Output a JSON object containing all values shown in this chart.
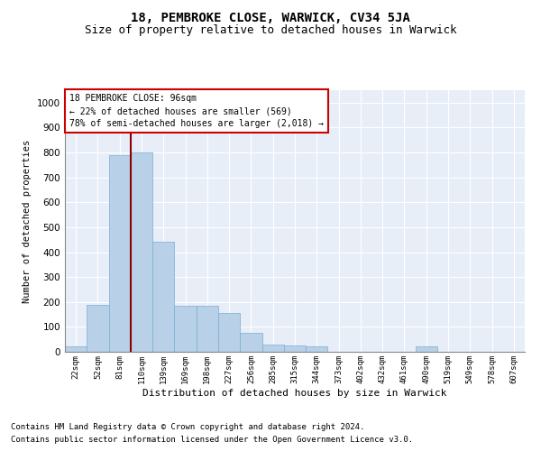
{
  "title1": "18, PEMBROKE CLOSE, WARWICK, CV34 5JA",
  "title2": "Size of property relative to detached houses in Warwick",
  "xlabel": "Distribution of detached houses by size in Warwick",
  "ylabel": "Number of detached properties",
  "categories": [
    "22sqm",
    "52sqm",
    "81sqm",
    "110sqm",
    "139sqm",
    "169sqm",
    "198sqm",
    "227sqm",
    "256sqm",
    "285sqm",
    "315sqm",
    "344sqm",
    "373sqm",
    "402sqm",
    "432sqm",
    "461sqm",
    "490sqm",
    "519sqm",
    "549sqm",
    "578sqm",
    "607sqm"
  ],
  "values": [
    20,
    190,
    790,
    800,
    440,
    185,
    185,
    155,
    75,
    30,
    25,
    20,
    0,
    0,
    0,
    0,
    20,
    0,
    0,
    0,
    0
  ],
  "bar_color": "#b8d0e8",
  "bar_edgecolor": "#7aaed0",
  "bg_color": "#e8eef8",
  "grid_color": "#ffffff",
  "vline_color": "#8b0000",
  "annotation_text": "18 PEMBROKE CLOSE: 96sqm\n← 22% of detached houses are smaller (569)\n78% of semi-detached houses are larger (2,018) →",
  "annotation_box_facecolor": "#ffffff",
  "annotation_box_edgecolor": "#cc0000",
  "ylim": [
    0,
    1050
  ],
  "yticks": [
    0,
    100,
    200,
    300,
    400,
    500,
    600,
    700,
    800,
    900,
    1000
  ],
  "footnote1": "Contains HM Land Registry data © Crown copyright and database right 2024.",
  "footnote2": "Contains public sector information licensed under the Open Government Licence v3.0.",
  "fig_facecolor": "#ffffff",
  "title1_fontsize": 10,
  "title2_fontsize": 9
}
